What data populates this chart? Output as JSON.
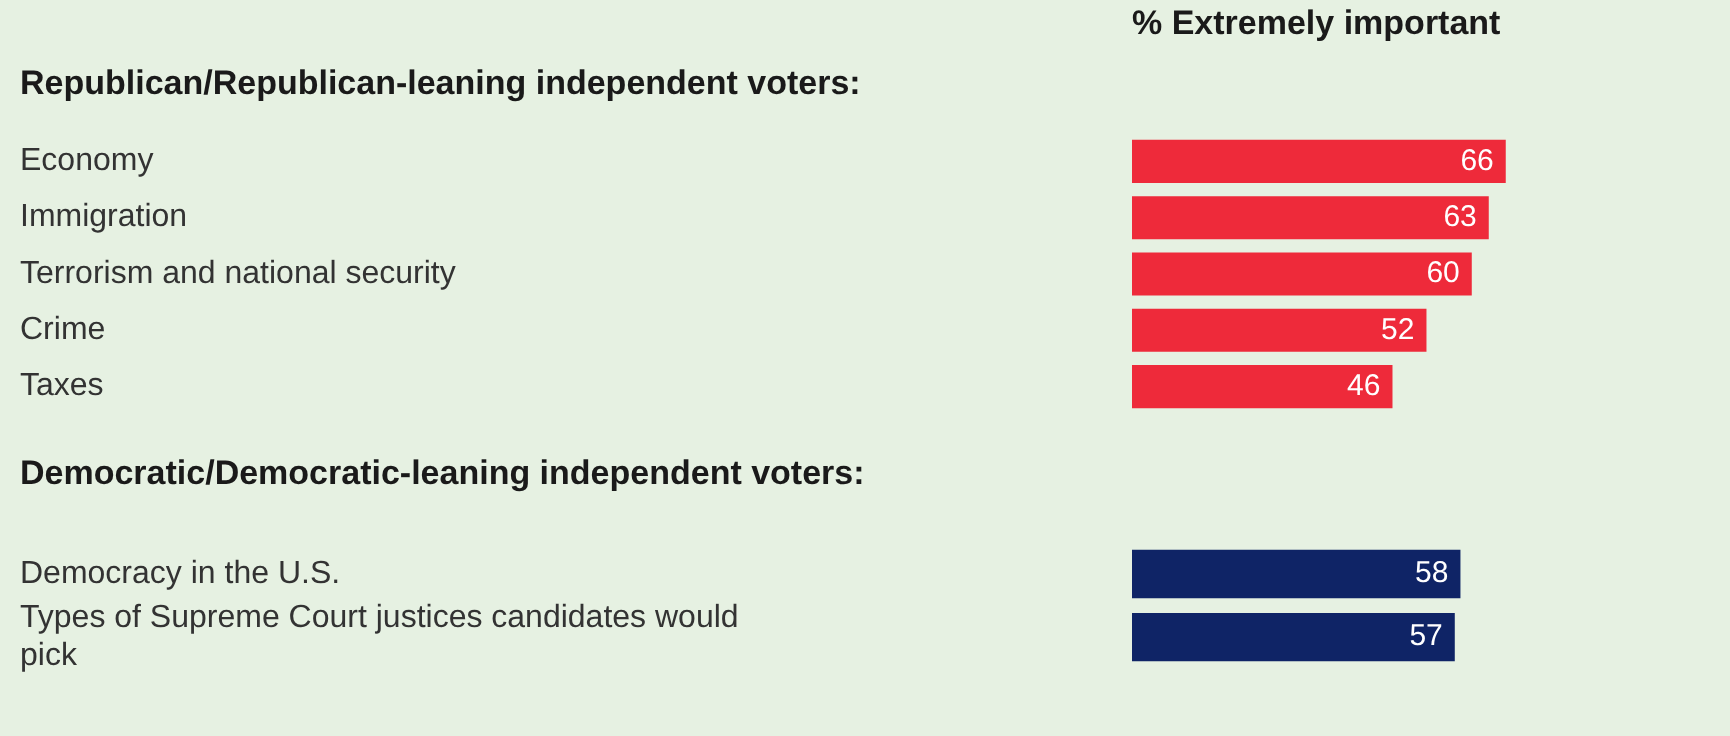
{
  "chart_data": [
    {
      "type": "bar",
      "orientation": "horizontal",
      "title": "Republican/Republican-leaning independent voters:",
      "xlabel": "% Extremely important",
      "categories": [
        "Economy",
        "Immigration",
        "Terrorism and national security",
        "Crime",
        "Taxes"
      ],
      "values": [
        66,
        63,
        60,
        52,
        46
      ],
      "color": "#ee2a3a",
      "data_labels": true
    },
    {
      "type": "bar",
      "orientation": "horizontal",
      "title": "Democratic/Democratic-leaning independent voters:",
      "categories": [
        "Democracy in the U.S.",
        "Types of Supreme Court justices candidates would pick"
      ],
      "values": [
        58,
        57
      ],
      "color": "#0f2466",
      "data_labels": true
    }
  ]
}
